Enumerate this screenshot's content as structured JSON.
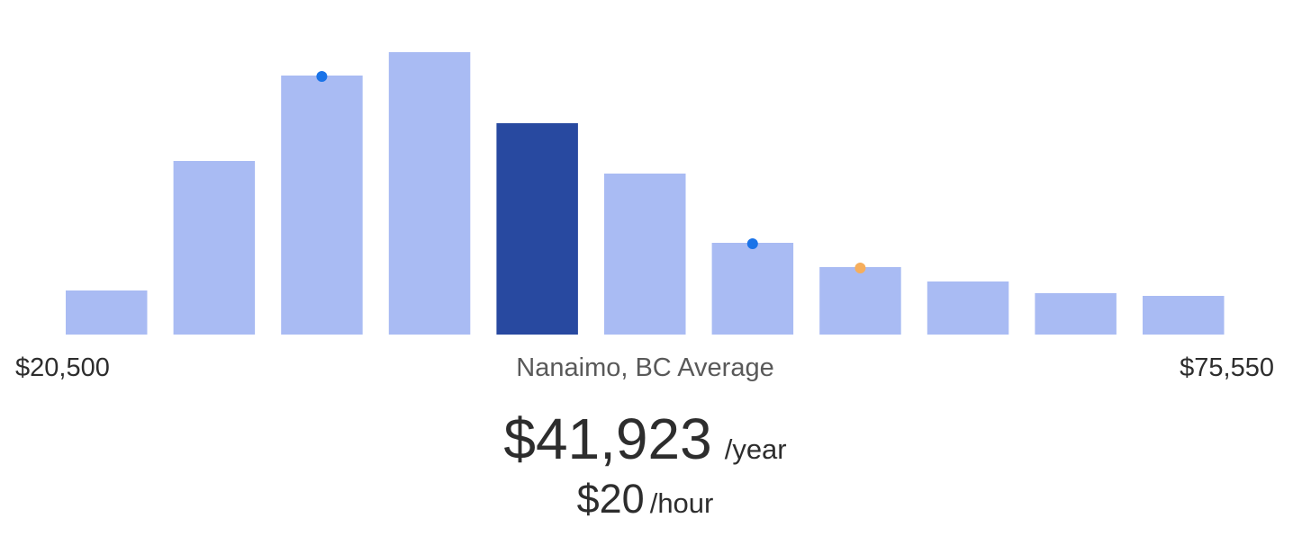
{
  "chart_data": {
    "type": "bar",
    "title": "",
    "xlabel": "",
    "ylabel": "",
    "range_min_label": "$20,500",
    "range_max_label": "$75,550",
    "average_caption": "Nanaimo, BC Average",
    "values": [
      49,
      193,
      288,
      314,
      235,
      179,
      102,
      75,
      59,
      46,
      43
    ],
    "ylim": [
      0,
      320
    ],
    "highlight_index": 4,
    "markers": [
      {
        "bar_index": 2,
        "color": "#1a73e8"
      },
      {
        "bar_index": 6,
        "color": "#1a73e8"
      },
      {
        "bar_index": 7,
        "color": "#f6ae5c"
      }
    ],
    "colors": {
      "bar": "#a9bbf3",
      "highlight": "#2849a0"
    },
    "grid": false
  },
  "salary": {
    "yearly_amount": "$41,923",
    "yearly_unit": "/year",
    "hourly_amount": "$20",
    "hourly_unit": "/hour"
  }
}
